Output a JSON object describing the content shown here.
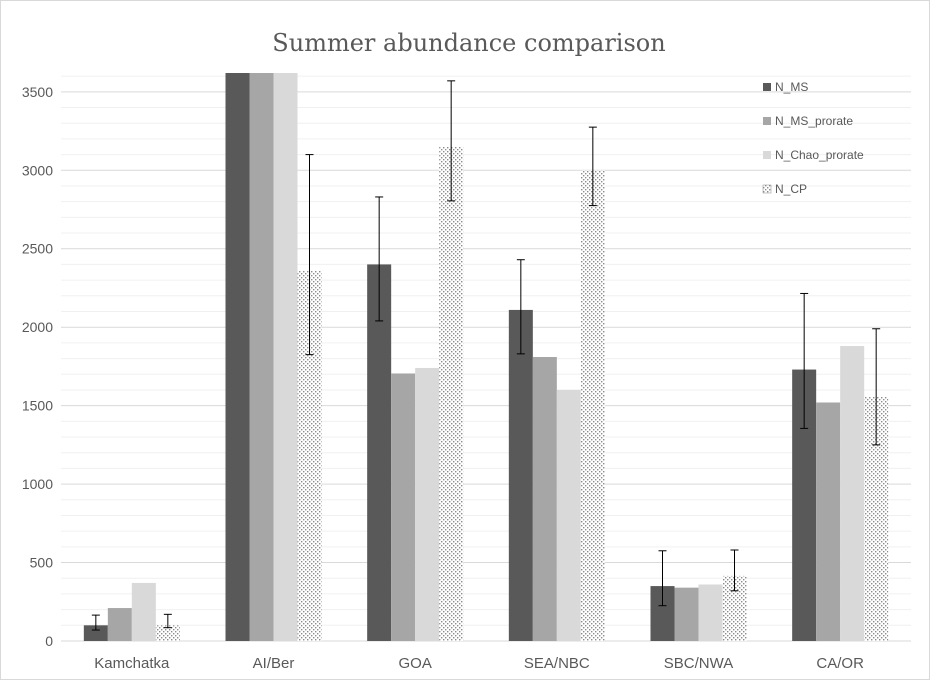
{
  "chart_data": {
    "type": "bar",
    "title": "Summer abundance comparison",
    "xlabel": "",
    "ylabel": "",
    "ylim": [
      0,
      3620
    ],
    "yticks": [
      0,
      500,
      1000,
      1500,
      2000,
      2500,
      3000,
      3500
    ],
    "grid": true,
    "minor_grid_step": 100,
    "legend_position": "top-right",
    "categories": [
      "Kamchatka",
      "AI/Ber",
      "GOA",
      "SEA/NBC",
      "SBC/NWA",
      "CA/OR"
    ],
    "series": [
      {
        "name": "N_MS",
        "color": "#595959",
        "pattern": "solid",
        "values": [
          100,
          3620,
          2400,
          2110,
          350,
          1730
        ],
        "error_low": [
          70,
          null,
          2040,
          1830,
          225,
          1355
        ],
        "error_high": [
          165,
          null,
          2830,
          2430,
          575,
          2215
        ]
      },
      {
        "name": "N_MS_prorate",
        "color": "#a6a6a6",
        "pattern": "solid",
        "values": [
          210,
          3620,
          1705,
          1810,
          340,
          1520
        ]
      },
      {
        "name": "N_Chao_prorate",
        "color": "#d9d9d9",
        "pattern": "solid",
        "values": [
          370,
          3620,
          1740,
          1600,
          360,
          1880
        ]
      },
      {
        "name": "N_CP",
        "color": "#bfbfbf",
        "pattern": "dotted",
        "values": [
          100,
          2360,
          3150,
          3000,
          415,
          1555
        ],
        "error_low": [
          85,
          1825,
          2805,
          2775,
          320,
          1250
        ],
        "error_high": [
          170,
          3100,
          3570,
          3275,
          580,
          1990
        ]
      }
    ]
  }
}
